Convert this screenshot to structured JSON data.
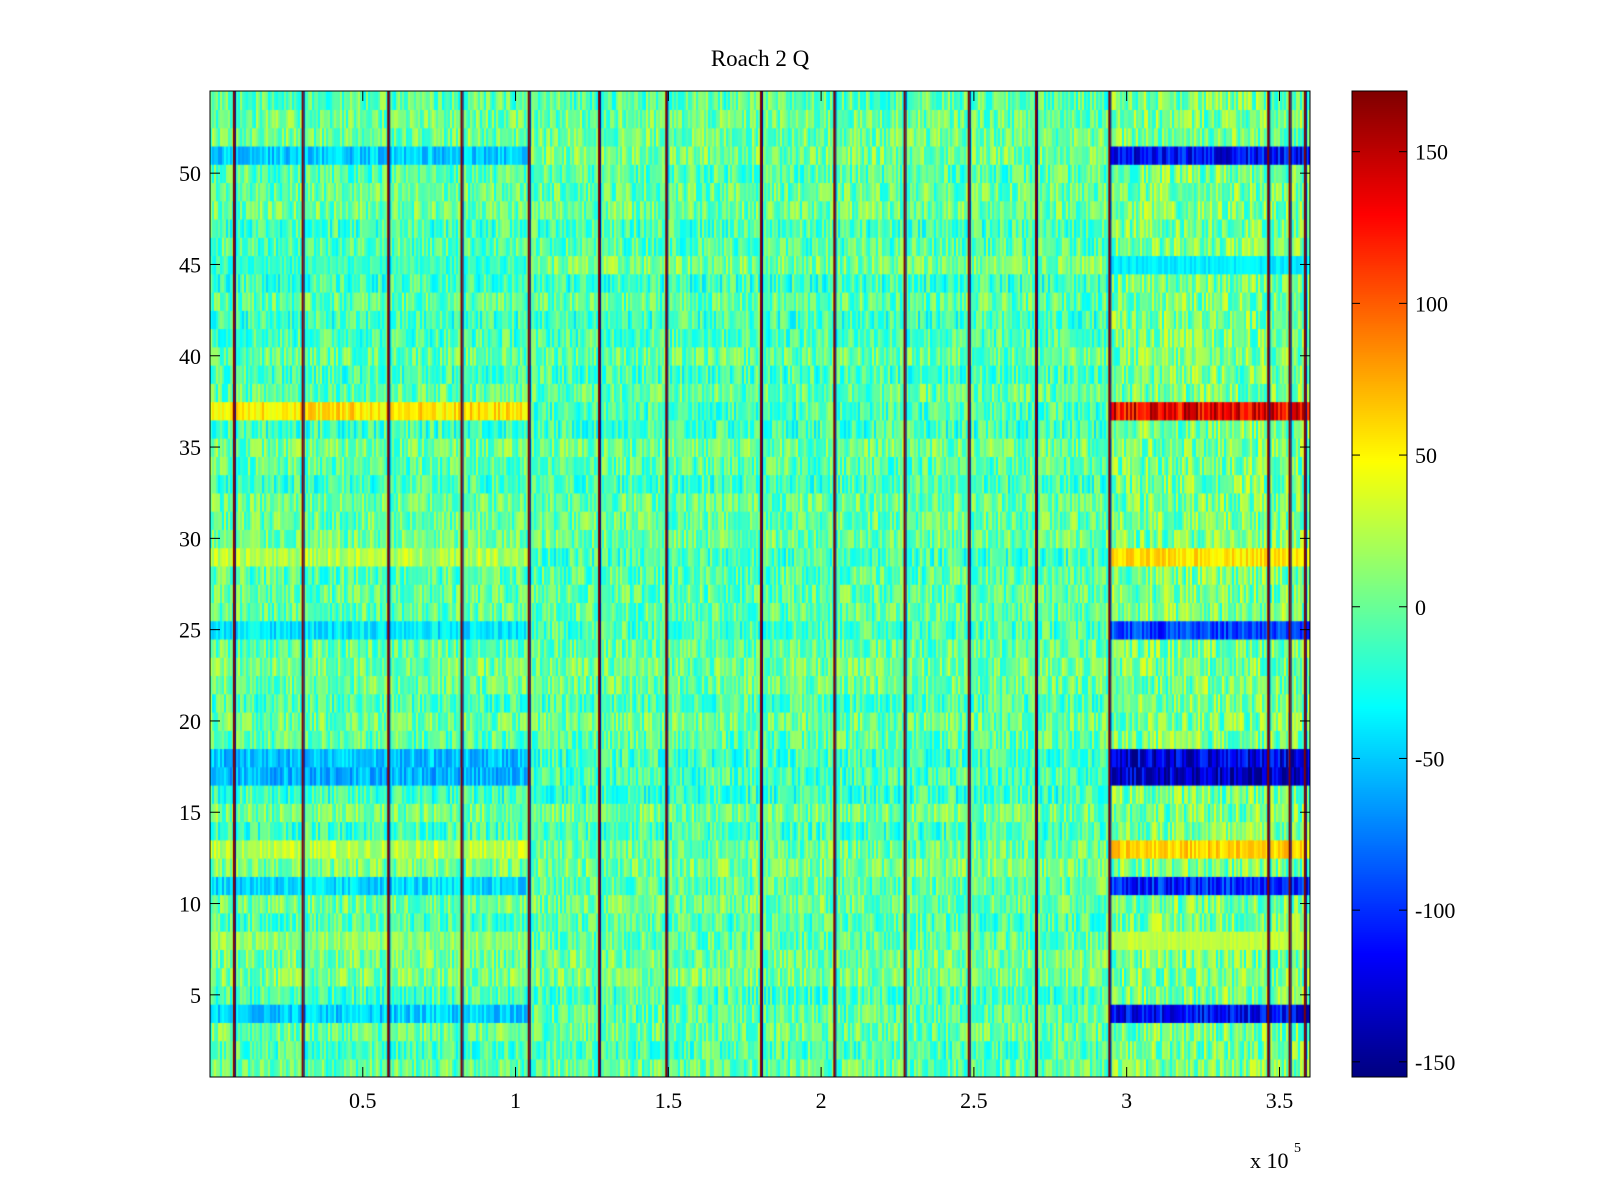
{
  "chart_data": {
    "type": "heatmap",
    "title": "Roach 2 Q",
    "xlabel": "",
    "ylabel": "",
    "x_range": [
      0,
      360000
    ],
    "y_range": [
      0.5,
      54.5
    ],
    "n_rows": 54,
    "x_tick_labels": [
      "0.5",
      "1",
      "1.5",
      "2",
      "2.5",
      "3",
      "3.5"
    ],
    "x_tick_values": [
      50000,
      100000,
      150000,
      200000,
      250000,
      300000,
      350000
    ],
    "x_exponent_label": "x 10",
    "x_exponent_power": "5",
    "y_tick_labels": [
      "5",
      "10",
      "15",
      "20",
      "25",
      "30",
      "35",
      "40",
      "45",
      "50"
    ],
    "y_tick_values": [
      5,
      10,
      15,
      20,
      25,
      30,
      35,
      40,
      45,
      50
    ],
    "colorbar": {
      "range": [
        -155,
        170
      ],
      "tick_values": [
        150,
        100,
        50,
        0,
        -50,
        -100,
        -150
      ],
      "tick_labels": [
        "150",
        "100",
        "50",
        "0",
        "-50",
        "-100",
        "-150"
      ],
      "colormap": "jet"
    },
    "vertical_discontinuities_x": [
      7500,
      30000,
      58000,
      82000,
      104000,
      127000,
      149000,
      180000,
      204000,
      227000,
      248000,
      270000,
      294000,
      346000,
      353000,
      358000
    ],
    "high_variance_region_x": [
      294000,
      360000
    ],
    "strong_rows": [
      {
        "row": 37,
        "value": 140
      },
      {
        "row": 29,
        "value": 60
      },
      {
        "row": 13,
        "value": 65
      },
      {
        "row": 8,
        "value": 30
      },
      {
        "row": 51,
        "value": -120
      },
      {
        "row": 17,
        "value": -140
      },
      {
        "row": 18,
        "value": -130
      },
      {
        "row": 11,
        "value": -110
      },
      {
        "row": 4,
        "value": -120
      },
      {
        "row": 25,
        "value": -100
      },
      {
        "row": 45,
        "value": -40
      }
    ]
  }
}
